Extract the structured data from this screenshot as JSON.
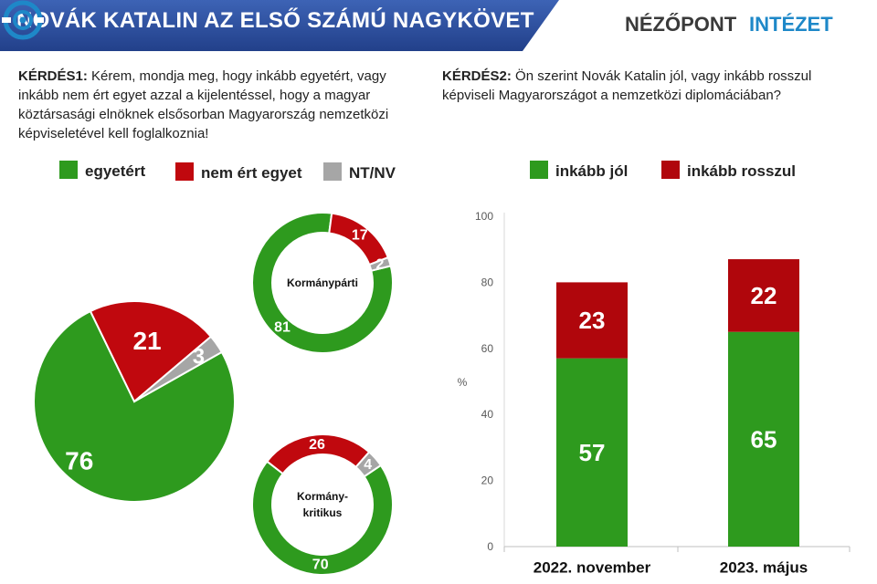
{
  "header": {
    "title": "NOVÁK KATALIN AZ ELSŐ SZÁMÚ NAGYKÖVET",
    "logo_text_1": "NÉZŐPONT",
    "logo_text_2": "INTÉZET",
    "logo_icon": "target-eye-icon",
    "band_color": "#2d4f9a"
  },
  "q1": {
    "label": "KÉRDÉS1:",
    "text": " Kérem, mondja meg, hogy inkább egyetért, vagy inkább nem ért egyet azzal a kijelentéssel, hogy a magyar köztársasági elnöknek elsősorban Magyarország nemzetközi képviseletével kell foglalkoznia!",
    "legend": [
      {
        "label": "egyetért",
        "color": "#2e9a1e"
      },
      {
        "label": "nem ért egyet",
        "color": "#c0080e"
      },
      {
        "label": "NT/NV",
        "color": "#a6a6a6"
      }
    ]
  },
  "q2": {
    "label": "KÉRDÉS2:",
    "text": " Ön szerint Novák Katalin jól, vagy inkább rosszul képviseli Magyarországot a nemzetközi diplomáciában?",
    "legend": [
      {
        "label": "inkább jól",
        "color": "#2e9a1e"
      },
      {
        "label": "inkább rosszul",
        "color": "#b0060c"
      }
    ]
  },
  "chart_data": [
    {
      "type": "pie",
      "title": "",
      "labels": [
        "egyetért",
        "nem ért egyet",
        "NT/NV"
      ],
      "values": [
        76,
        21,
        3
      ],
      "colors": [
        "#2e9a1e",
        "#c0080e",
        "#a6a6a6"
      ]
    },
    {
      "type": "pie",
      "variant": "donut",
      "title": "Kormánypárti",
      "labels": [
        "egyetért",
        "nem ért egyet",
        "NT/NV"
      ],
      "values": [
        81,
        17,
        2
      ],
      "colors": [
        "#2e9a1e",
        "#c0080e",
        "#a6a6a6"
      ]
    },
    {
      "type": "pie",
      "variant": "donut",
      "title": "Kormány-kritikus",
      "title_lines": [
        "Kormány-",
        "kritikus"
      ],
      "labels": [
        "egyetért",
        "nem ért egyet",
        "NT/NV"
      ],
      "values": [
        70,
        26,
        4
      ],
      "colors": [
        "#2e9a1e",
        "#c0080e",
        "#a6a6a6"
      ]
    },
    {
      "type": "bar",
      "stacked": true,
      "categories": [
        "2022. november",
        "2023. május"
      ],
      "series": [
        {
          "name": "inkább jól",
          "values": [
            57,
            65
          ],
          "color": "#2e9a1e"
        },
        {
          "name": "inkább rosszul",
          "values": [
            23,
            22
          ],
          "color": "#b0060c"
        }
      ],
      "ylabel": "%",
      "ylim": [
        0,
        100
      ],
      "yticks": [
        0,
        20,
        40,
        60,
        80,
        100
      ],
      "grid": false,
      "legend_position": "top"
    }
  ]
}
